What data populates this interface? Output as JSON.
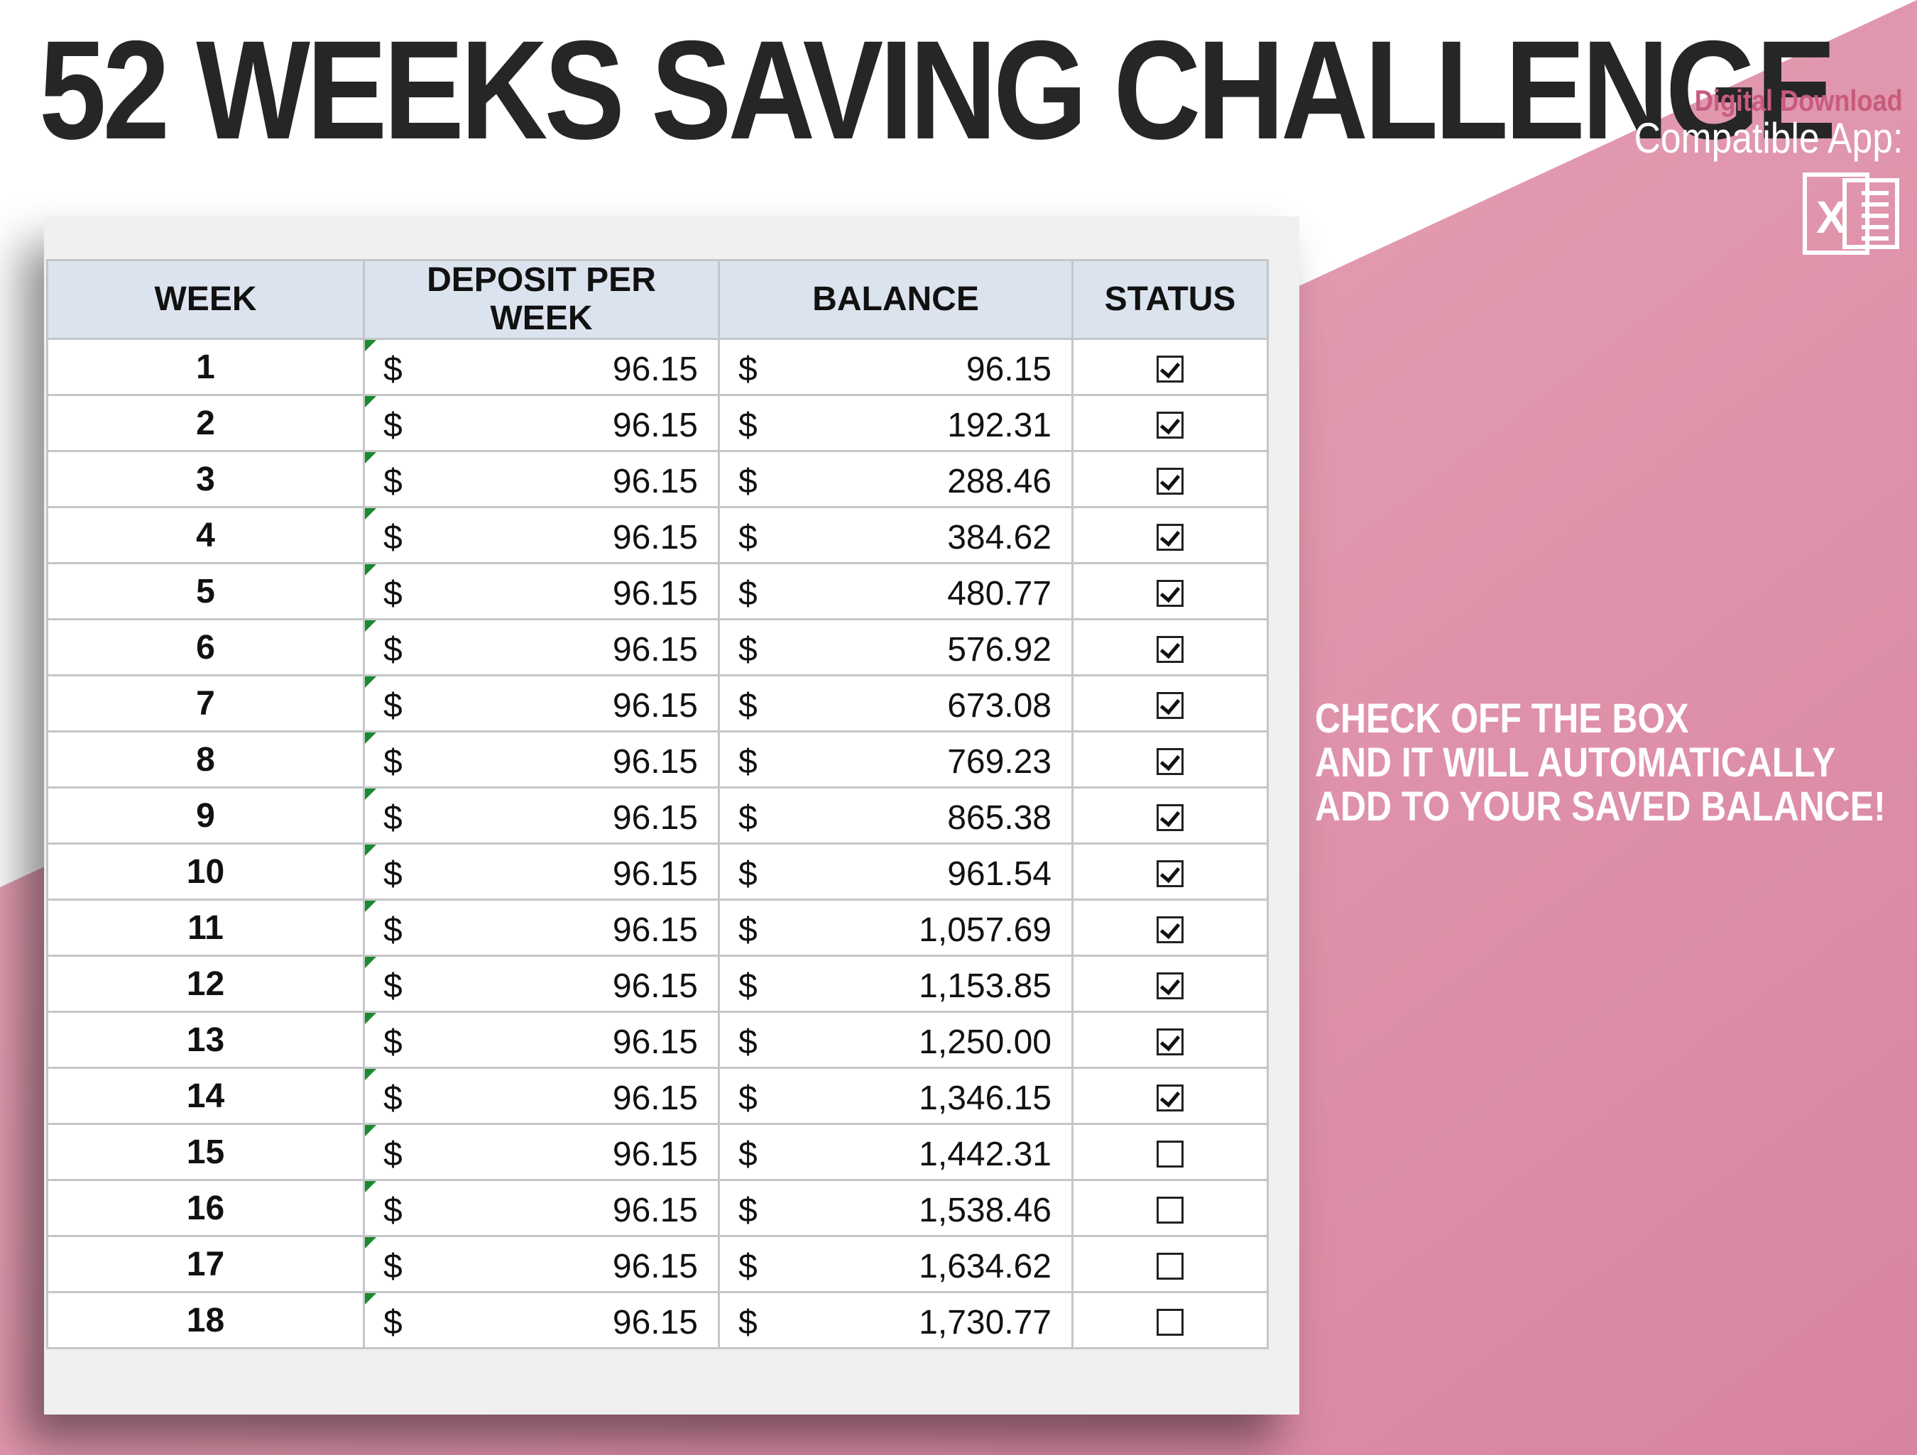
{
  "header": {
    "title": "52 WEEKS SAVING CHALLENGE",
    "digital_download": "Digital Download",
    "compatible_app": "Compatible App:",
    "app_icon": "excel-icon",
    "app_icon_letter": "X"
  },
  "callout": {
    "lines": [
      "CHECK OFF THE BOX",
      "AND IT WILL AUTOMATICALLY",
      "ADD TO YOUR SAVED BALANCE!"
    ]
  },
  "colors": {
    "accent_pink": "#de94ab",
    "header_fill": "#dbe3ee",
    "title_text": "#262626",
    "download_label": "#c75b7e"
  },
  "spreadsheet": {
    "columns": [
      "WEEK",
      "DEPOSIT PER WEEK",
      "BALANCE",
      "STATUS"
    ],
    "currency_symbol": "$",
    "rows": [
      {
        "week": "1",
        "deposit": "96.15",
        "balance": "96.15",
        "checked": true
      },
      {
        "week": "2",
        "deposit": "96.15",
        "balance": "192.31",
        "checked": true
      },
      {
        "week": "3",
        "deposit": "96.15",
        "balance": "288.46",
        "checked": true
      },
      {
        "week": "4",
        "deposit": "96.15",
        "balance": "384.62",
        "checked": true
      },
      {
        "week": "5",
        "deposit": "96.15",
        "balance": "480.77",
        "checked": true
      },
      {
        "week": "6",
        "deposit": "96.15",
        "balance": "576.92",
        "checked": true
      },
      {
        "week": "7",
        "deposit": "96.15",
        "balance": "673.08",
        "checked": true
      },
      {
        "week": "8",
        "deposit": "96.15",
        "balance": "769.23",
        "checked": true
      },
      {
        "week": "9",
        "deposit": "96.15",
        "balance": "865.38",
        "checked": true
      },
      {
        "week": "10",
        "deposit": "96.15",
        "balance": "961.54",
        "checked": true
      },
      {
        "week": "11",
        "deposit": "96.15",
        "balance": "1,057.69",
        "checked": true
      },
      {
        "week": "12",
        "deposit": "96.15",
        "balance": "1,153.85",
        "checked": true
      },
      {
        "week": "13",
        "deposit": "96.15",
        "balance": "1,250.00",
        "checked": true
      },
      {
        "week": "14",
        "deposit": "96.15",
        "balance": "1,346.15",
        "checked": true
      },
      {
        "week": "15",
        "deposit": "96.15",
        "balance": "1,442.31",
        "checked": false
      },
      {
        "week": "16",
        "deposit": "96.15",
        "balance": "1,538.46",
        "checked": false
      },
      {
        "week": "17",
        "deposit": "96.15",
        "balance": "1,634.62",
        "checked": false
      },
      {
        "week": "18",
        "deposit": "96.15",
        "balance": "1,730.77",
        "checked": false
      }
    ]
  }
}
